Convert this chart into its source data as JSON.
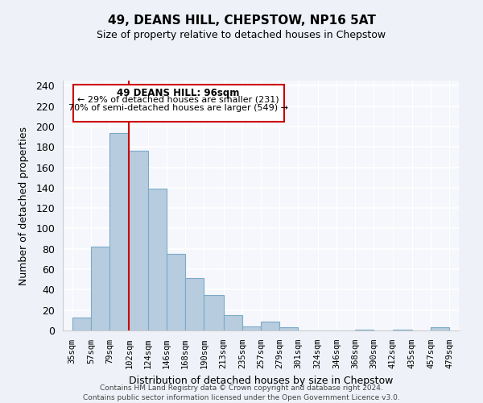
{
  "title": "49, DEANS HILL, CHEPSTOW, NP16 5AT",
  "subtitle": "Size of property relative to detached houses in Chepstow",
  "xlabel": "Distribution of detached houses by size in Chepstow",
  "ylabel": "Number of detached properties",
  "bin_labels": [
    "35sqm",
    "57sqm",
    "79sqm",
    "102sqm",
    "124sqm",
    "146sqm",
    "168sqm",
    "190sqm",
    "213sqm",
    "235sqm",
    "257sqm",
    "279sqm",
    "301sqm",
    "324sqm",
    "346sqm",
    "368sqm",
    "390sqm",
    "412sqm",
    "435sqm",
    "457sqm",
    "479sqm"
  ],
  "bar_values": [
    13,
    82,
    194,
    176,
    139,
    75,
    51,
    35,
    15,
    4,
    9,
    3,
    0,
    0,
    0,
    1,
    0,
    1,
    0,
    3
  ],
  "bar_color": "#b8ccdf",
  "bar_edge_color": "#7aaac8",
  "vline_color": "#cc0000",
  "subject_line_label": "49 DEANS HILL: 96sqm",
  "annotation_line1": "← 29% of detached houses are smaller (231)",
  "annotation_line2": "70% of semi-detached houses are larger (549) →",
  "ylim": [
    0,
    245
  ],
  "yticks": [
    0,
    20,
    40,
    60,
    80,
    100,
    120,
    140,
    160,
    180,
    200,
    220,
    240
  ],
  "footer1": "Contains HM Land Registry data © Crown copyright and database right 2024.",
  "footer2": "Contains public sector information licensed under the Open Government Licence v3.0.",
  "bg_color": "#eef2f8",
  "plot_bg_color": "#f5f7fc"
}
